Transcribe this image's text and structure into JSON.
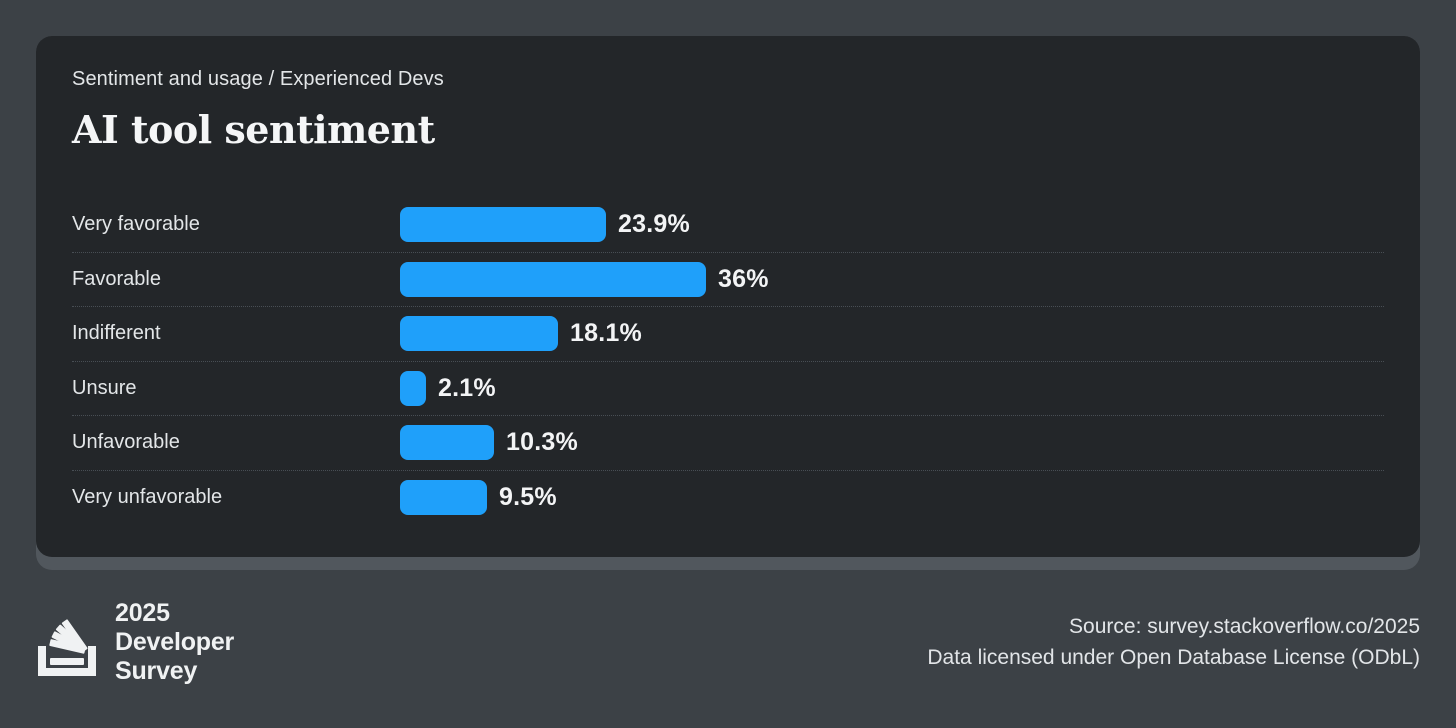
{
  "card": {
    "breadcrumb": "Sentiment and usage / Experienced Devs",
    "title": "AI tool sentiment"
  },
  "chart_data": {
    "type": "bar",
    "orientation": "horizontal",
    "title": "AI tool sentiment",
    "subtitle": "Sentiment and usage / Experienced Devs",
    "categories": [
      "Very favorable",
      "Favorable",
      "Indifferent",
      "Unsure",
      "Unfavorable",
      "Very unfavorable"
    ],
    "values": [
      23.9,
      36,
      18.1,
      2.1,
      10.3,
      9.5
    ],
    "value_labels": [
      "23.9%",
      "36%",
      "18.1%",
      "2.1%",
      "10.3%",
      "9.5%"
    ],
    "unit": "%",
    "bar_color": "#1fa0fa",
    "xlim": [
      0,
      40
    ],
    "grid": false,
    "legend": false
  },
  "footer": {
    "logo_icon": "stackoverflow-logo",
    "logo_lines": [
      "2025",
      "Developer",
      "Survey"
    ],
    "source": "Source: survey.stackoverflow.co/2025",
    "license": "Data licensed under Open Database License (ODbL)"
  },
  "colors": {
    "page_bg": "#3c4146",
    "card_bg": "#232629",
    "card_shadow": "#51575d",
    "bar": "#1fa0fa",
    "divider": "#484e54",
    "text_primary": "#f3f4f5",
    "text_secondary": "#e3e6e8"
  }
}
